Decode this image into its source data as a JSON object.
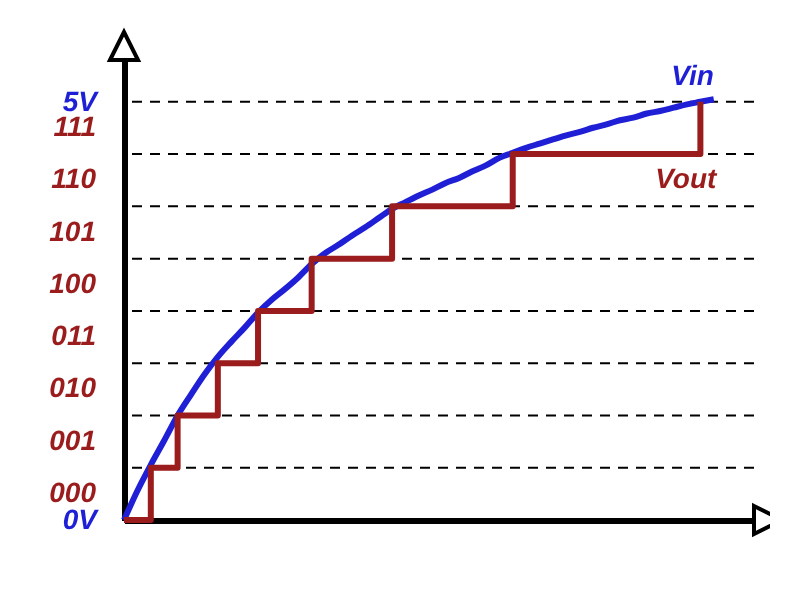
{
  "chart_data": {
    "type": "line",
    "categories": [
      null,
      null,
      null,
      null,
      null,
      null,
      null,
      null,
      null,
      null,
      null,
      null,
      null,
      null,
      null,
      null,
      null,
      null,
      null,
      null,
      null,
      null,
      null,
      null,
      null,
      null,
      null,
      null,
      null,
      null,
      null,
      null,
      null,
      null,
      null,
      null,
      null,
      null,
      null,
      null,
      null,
      null,
      null,
      null,
      null,
      null,
      null,
      null
    ],
    "ylim": [
      0,
      5.5
    ],
    "yticks": [
      {
        "value": 0,
        "label": "0V"
      },
      {
        "value": 5,
        "label": "5V"
      }
    ],
    "tick_labels": "y",
    "series": [
      {
        "name": "Vin",
        "color": "#1f1fd6",
        "values": [
          0,
          0.35,
          0.66,
          0.95,
          1.25,
          1.5,
          1.74,
          1.95,
          2.13,
          2.3,
          2.48,
          2.63,
          2.76,
          2.9,
          3.06,
          3.19,
          3.29,
          3.4,
          3.5,
          3.61,
          3.72,
          3.8,
          3.88,
          3.95,
          4.03,
          4.09,
          4.17,
          4.24,
          4.33,
          4.39,
          4.45,
          4.5,
          4.55,
          4.6,
          4.64,
          4.69,
          4.73,
          4.78,
          4.81,
          4.86,
          4.89,
          4.93,
          4.97,
          5,
          5.03,
          null,
          null,
          null
        ]
      },
      {
        "name": "Vout",
        "type": "step",
        "color": "#9b1c1c",
        "values": [
          0,
          0,
          0.625,
          0.625,
          1.25,
          1.25,
          1.25,
          1.875,
          1.875,
          1.875,
          2.5,
          2.5,
          2.5,
          2.5,
          3.125,
          3.125,
          3.125,
          3.125,
          3.125,
          3.125,
          3.75,
          3.75,
          3.75,
          3.75,
          3.75,
          3.75,
          3.75,
          3.75,
          3.75,
          4.375,
          4.375,
          4.375,
          4.375,
          4.375,
          4.375,
          4.375,
          4.375,
          4.375,
          4.375,
          4.375,
          4.375,
          4.375,
          4.375,
          5,
          null,
          null,
          null,
          null
        ]
      }
    ],
    "ref_lines": [
      {
        "axis": "y",
        "value": 0.625,
        "line_style": "dashed"
      },
      {
        "axis": "y",
        "value": 1.25,
        "line_style": "dashed"
      },
      {
        "axis": "y",
        "value": 1.875,
        "line_style": "dashed"
      },
      {
        "axis": "y",
        "value": 2.5,
        "line_style": "dashed"
      },
      {
        "axis": "y",
        "value": 3.125,
        "line_style": "dashed"
      },
      {
        "axis": "y",
        "value": 3.75,
        "line_style": "dashed"
      },
      {
        "axis": "y",
        "value": 4.375,
        "line_style": "dashed"
      },
      {
        "axis": "y",
        "value": 5,
        "line_style": "dashed"
      }
    ],
    "annotations": [
      "000",
      "001",
      "010",
      "011",
      "100",
      "101",
      "110",
      "111"
    ]
  }
}
